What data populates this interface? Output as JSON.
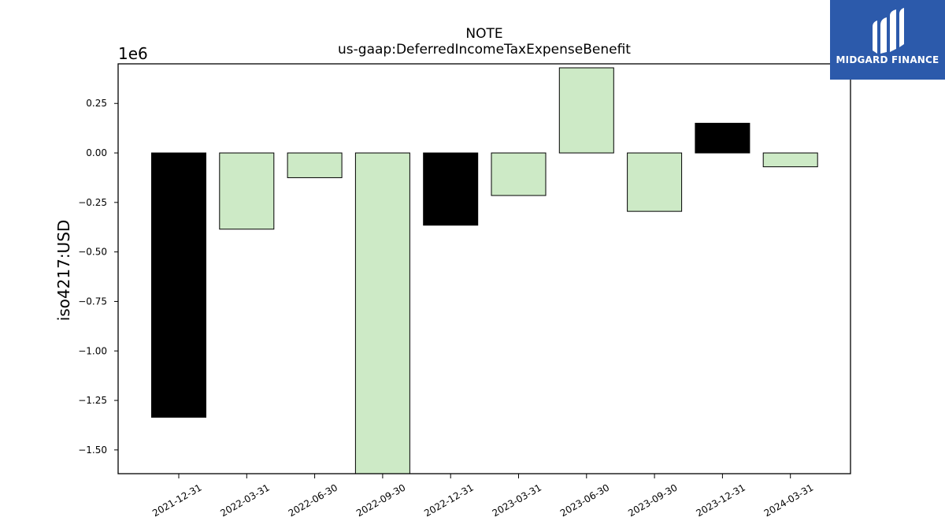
{
  "chart_data": {
    "type": "bar",
    "title": "NOTE",
    "subtitle": "us-gaap:DeferredIncomeTaxExpenseBenefit",
    "xlabel": "",
    "ylabel": "iso4217:USD",
    "scale_label": "1e6",
    "ylim": [
      -1.62,
      0.45
    ],
    "yticks": [
      0.25,
      0.0,
      -0.25,
      -0.5,
      -0.75,
      -1.0,
      -1.25,
      -1.5
    ],
    "ytick_labels": [
      "0.25",
      "0.00",
      "−0.25",
      "−0.50",
      "−0.75",
      "−1.00",
      "−1.25",
      "−1.50"
    ],
    "categories": [
      "2021-12-31",
      "2022-03-31",
      "2022-06-30",
      "2022-09-30",
      "2022-12-31",
      "2023-03-31",
      "2023-06-30",
      "2023-09-30",
      "2023-12-31",
      "2024-03-31"
    ],
    "values": [
      -1.335,
      -0.385,
      -0.125,
      -1.62,
      -0.365,
      -0.215,
      0.43,
      -0.295,
      0.15,
      -0.07
    ],
    "bar_colors": [
      "#000000",
      "#cdeac6",
      "#cdeac6",
      "#cdeac6",
      "#000000",
      "#cdeac6",
      "#cdeac6",
      "#cdeac6",
      "#000000",
      "#cdeac6"
    ],
    "grid": false
  },
  "logo": {
    "text": "MIDGARD FINANCE",
    "background": "#2c5aab"
  }
}
